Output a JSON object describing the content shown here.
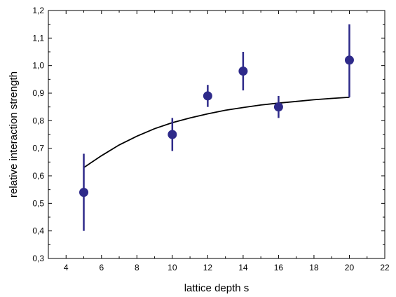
{
  "chart_data": {
    "type": "scatter",
    "title": "",
    "xlabel": "lattice depth s",
    "ylabel": "relative interaction strength",
    "xlim": [
      3,
      22
    ],
    "ylim": [
      0.3,
      1.2
    ],
    "x_ticks": [
      4,
      6,
      8,
      10,
      12,
      14,
      16,
      18,
      20,
      22
    ],
    "x_tick_labels": [
      "4",
      "6",
      "8",
      "10",
      "12",
      "14",
      "16",
      "18",
      "20",
      "22"
    ],
    "y_ticks": [
      0.3,
      0.4,
      0.5,
      0.6,
      0.7,
      0.8,
      0.9,
      1.0,
      1.1,
      1.2
    ],
    "y_tick_labels": [
      "0,3",
      "0,4",
      "0,5",
      "0,6",
      "0,7",
      "0,8",
      "0,9",
      "1,0",
      "1,1",
      "1,2"
    ],
    "grid": false,
    "legend": "none",
    "series": [
      {
        "kind": "points_with_error_bars",
        "color": "#2e2a8a",
        "x": [
          5,
          10,
          12,
          14,
          16,
          20
        ],
        "y": [
          0.54,
          0.75,
          0.89,
          0.98,
          0.85,
          1.02
        ],
        "y_low": [
          0.4,
          0.69,
          0.85,
          0.91,
          0.81,
          0.885
        ],
        "y_high": [
          0.68,
          0.81,
          0.93,
          1.05,
          0.89,
          1.15
        ]
      },
      {
        "kind": "line",
        "color": "#000000",
        "x": [
          5,
          6,
          7,
          8,
          9,
          10,
          11,
          12,
          13,
          14,
          15,
          16,
          17,
          18,
          19,
          20
        ],
        "y": [
          0.63,
          0.673,
          0.712,
          0.744,
          0.771,
          0.793,
          0.81,
          0.825,
          0.838,
          0.848,
          0.857,
          0.864,
          0.87,
          0.876,
          0.881,
          0.885
        ]
      }
    ]
  }
}
